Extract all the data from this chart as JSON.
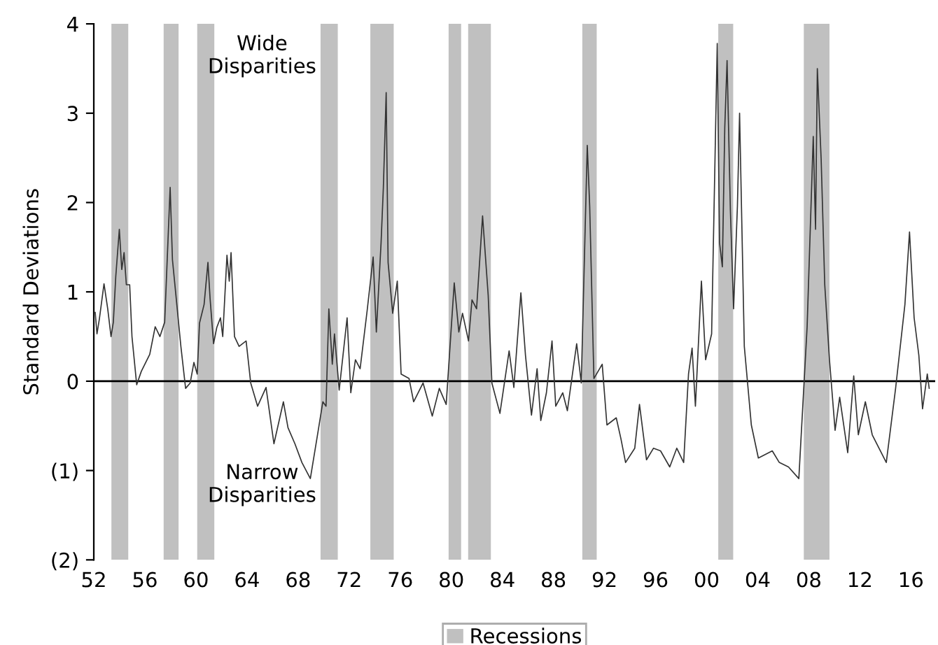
{
  "chart_data": {
    "type": "line",
    "ylabel": "Standard Deviations",
    "annotations": [
      "Wide\nDisparities",
      "Narrow\nDisparities"
    ],
    "xlim": [
      1952,
      2017.9
    ],
    "xticks": [
      {
        "value": 1952,
        "label": "52"
      },
      {
        "value": 1956,
        "label": "56"
      },
      {
        "value": 1960,
        "label": "60"
      },
      {
        "value": 1964,
        "label": "64"
      },
      {
        "value": 1968,
        "label": "68"
      },
      {
        "value": 1972,
        "label": "72"
      },
      {
        "value": 1976,
        "label": "76"
      },
      {
        "value": 1980,
        "label": "80"
      },
      {
        "value": 1984,
        "label": "84"
      },
      {
        "value": 1988,
        "label": "88"
      },
      {
        "value": 1992,
        "label": "92"
      },
      {
        "value": 1996,
        "label": "96"
      },
      {
        "value": 2000,
        "label": "00"
      },
      {
        "value": 2004,
        "label": "04"
      },
      {
        "value": 2008,
        "label": "08"
      },
      {
        "value": 2012,
        "label": "12"
      },
      {
        "value": 2016,
        "label": "16"
      }
    ],
    "ylim": [
      -2,
      4
    ],
    "yticks": [
      {
        "value": -2,
        "label": "(2)"
      },
      {
        "value": -1,
        "label": "(1)"
      },
      0,
      1,
      2,
      3,
      4
    ],
    "grid": false,
    "legend": "bottom",
    "line_style": "solid",
    "marker": "none",
    "ref_lines": [
      {
        "axis": "y",
        "value": 0,
        "color": "#000000"
      }
    ],
    "bands": [
      {
        "axis": "x",
        "from": 1953.38,
        "to": 1954.7,
        "label": "Recessions",
        "color": "#c0c0c0"
      },
      {
        "axis": "x",
        "from": 1957.47,
        "to": 1958.64,
        "color": "#c0c0c0"
      },
      {
        "axis": "x",
        "from": 1960.1,
        "to": 1961.44,
        "color": "#c0c0c0"
      },
      {
        "axis": "x",
        "from": 1969.76,
        "to": 1971.11,
        "color": "#c0c0c0"
      },
      {
        "axis": "x",
        "from": 1973.66,
        "to": 1975.49,
        "color": "#c0c0c0"
      },
      {
        "axis": "x",
        "from": 1979.79,
        "to": 1980.77,
        "color": "#c0c0c0"
      },
      {
        "axis": "x",
        "from": 1981.32,
        "to": 1983.1,
        "color": "#c0c0c0"
      },
      {
        "axis": "x",
        "from": 1990.26,
        "to": 1991.39,
        "color": "#c0c0c0"
      },
      {
        "axis": "x",
        "from": 2000.91,
        "to": 2002.08,
        "color": "#c0c0c0"
      },
      {
        "axis": "x",
        "from": 2007.61,
        "to": 2009.62,
        "color": "#c0c0c0"
      }
    ],
    "series": [
      {
        "color": "#333333",
        "x": [
          1952.11,
          1952.25,
          1952.44,
          1952.8,
          1953.09,
          1953.35,
          1953.53,
          1953.72,
          1954.0,
          1954.19,
          1954.37,
          1954.55,
          1954.81,
          1954.99,
          1955.36,
          1955.72,
          1956.38,
          1956.81,
          1957.18,
          1957.55,
          1957.98,
          1958.16,
          1958.46,
          1958.82,
          1959.19,
          1959.55,
          1959.84,
          1960.1,
          1960.28,
          1960.64,
          1960.94,
          1961.11,
          1961.38,
          1961.63,
          1961.92,
          1962.1,
          1962.43,
          1962.61,
          1962.75,
          1963.02,
          1963.38,
          1963.93,
          1964.29,
          1964.83,
          1965.49,
          1966.11,
          1966.85,
          1967.21,
          1967.75,
          1968.3,
          1968.96,
          1969.58,
          1969.94,
          1970.19,
          1970.41,
          1970.68,
          1970.85,
          1971.22,
          1971.84,
          1972.13,
          1972.49,
          1972.86,
          1973.41,
          1973.88,
          1974.13,
          1974.5,
          1974.68,
          1974.9,
          1975.05,
          1975.41,
          1975.77,
          1976.07,
          1976.69,
          1977.05,
          1977.79,
          1978.51,
          1979.06,
          1979.6,
          1980.23,
          1980.59,
          1980.88,
          1981.35,
          1981.62,
          1981.98,
          1982.45,
          1982.89,
          1983.18,
          1983.81,
          1984.53,
          1984.9,
          1985.45,
          1985.81,
          1986.28,
          1986.72,
          1987.01,
          1987.45,
          1987.89,
          1988.18,
          1988.73,
          1989.09,
          1989.82,
          1990.18,
          1990.65,
          1990.84,
          1991.17,
          1991.82,
          1992.19,
          1992.92,
          1993.28,
          1993.65,
          1994.37,
          1994.74,
          1995.29,
          1995.84,
          1996.39,
          1997.11,
          1997.66,
          1998.2,
          1998.58,
          1998.86,
          1999.12,
          1999.59,
          1999.92,
          2000.39,
          2000.83,
          2001.01,
          2001.23,
          2001.42,
          2001.6,
          2001.86,
          2002.11,
          2002.41,
          2002.58,
          2002.95,
          2003.5,
          2004.05,
          2005.14,
          2005.69,
          2006.41,
          2007.22,
          2007.87,
          2008.35,
          2008.53,
          2008.67,
          2008.97,
          2009.25,
          2009.62,
          2010.06,
          2010.42,
          2011.05,
          2011.52,
          2011.88,
          2012.43,
          2012.97,
          2014.07,
          2014.8,
          2015.53,
          2015.89,
          2016.25,
          2016.62,
          2016.91,
          2017.28,
          2017.43
        ],
        "values": [
          0.77,
          0.53,
          0.7,
          1.09,
          0.81,
          0.5,
          0.66,
          1.17,
          1.7,
          1.25,
          1.44,
          1.08,
          1.08,
          0.5,
          -0.04,
          0.11,
          0.3,
          0.61,
          0.5,
          0.66,
          2.17,
          1.36,
          0.92,
          0.39,
          -0.08,
          -0.02,
          0.21,
          0.08,
          0.65,
          0.86,
          1.33,
          0.92,
          0.42,
          0.6,
          0.71,
          0.5,
          1.41,
          1.12,
          1.44,
          0.5,
          0.39,
          0.45,
          -0.02,
          -0.28,
          -0.07,
          -0.7,
          -0.23,
          -0.52,
          -0.7,
          -0.91,
          -1.09,
          -0.55,
          -0.23,
          -0.28,
          0.81,
          0.19,
          0.53,
          -0.1,
          0.71,
          -0.13,
          0.24,
          0.14,
          0.79,
          1.39,
          0.55,
          1.55,
          2.17,
          3.23,
          1.33,
          0.76,
          1.12,
          0.08,
          0.03,
          -0.23,
          -0.02,
          -0.39,
          -0.08,
          -0.26,
          1.1,
          0.55,
          0.76,
          0.45,
          0.91,
          0.81,
          1.85,
          0.96,
          -0.02,
          -0.36,
          0.34,
          -0.07,
          0.99,
          0.29,
          -0.38,
          0.14,
          -0.44,
          -0.13,
          0.45,
          -0.28,
          -0.13,
          -0.33,
          0.42,
          -0.02,
          2.64,
          1.96,
          0.03,
          0.19,
          -0.49,
          -0.41,
          -0.64,
          -0.91,
          -0.75,
          -0.26,
          -0.88,
          -0.75,
          -0.78,
          -0.96,
          -0.75,
          -0.91,
          0.08,
          0.37,
          -0.28,
          1.12,
          0.24,
          0.53,
          3.78,
          1.55,
          1.28,
          2.84,
          3.59,
          1.91,
          0.81,
          1.96,
          3.0,
          0.39,
          -0.49,
          -0.86,
          -0.78,
          -0.91,
          -0.96,
          -1.09,
          0.61,
          2.74,
          1.7,
          3.5,
          2.48,
          1.08,
          0.24,
          -0.55,
          -0.18,
          -0.8,
          0.06,
          -0.6,
          -0.23,
          -0.6,
          -0.91,
          -0.08,
          0.86,
          1.67,
          0.71,
          0.29,
          -0.31,
          0.08,
          -0.08
        ]
      }
    ]
  }
}
